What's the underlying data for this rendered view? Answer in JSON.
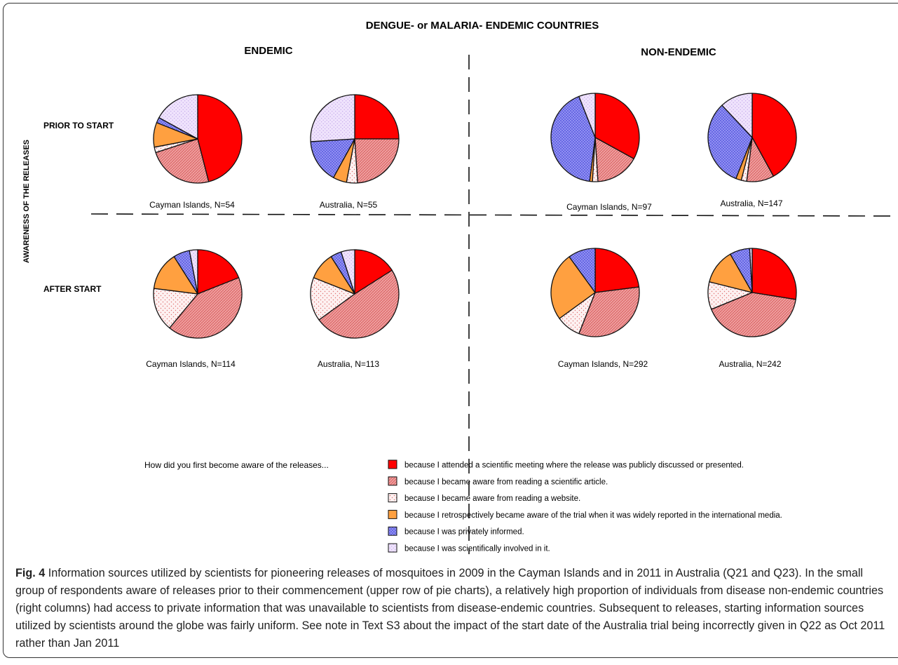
{
  "figure": {
    "title": "DENGUE- or MALARIA- ENDEMIC COUNTRIES",
    "column_headers": [
      "ENDEMIC",
      "NON-ENDEMIC"
    ],
    "row_headers": [
      "PRIOR TO START",
      "AFTER START"
    ],
    "side_label": "AWARENESS OF THE RELEASES",
    "legend_question": "How did you first become aware of the releases...",
    "legend": [
      {
        "label": "because I attended a scientific meeting where the release was publicly discussed or presented.",
        "color": "#ff0000",
        "pattern": "solid"
      },
      {
        "label": "because I became aware from reading a scientific article.",
        "color": "#e88080",
        "pattern": "hatch"
      },
      {
        "label": "because I became aware from reading a website.",
        "color": "#fde8e8",
        "pattern": "dots"
      },
      {
        "label": "because I retrospectively became aware of the trial when it was widely reported in the international media.",
        "color": "#ffa040",
        "pattern": "solid"
      },
      {
        "label": "because I was privately informed.",
        "color": "#8080f0",
        "pattern": "grid"
      },
      {
        "label": "because I was scientifically involved in it.",
        "color": "#e8d6fa",
        "pattern": "dots"
      }
    ]
  },
  "chart_data": [
    {
      "type": "pie",
      "label": "Cayman Islands, N=54",
      "group": "ENDEMIC",
      "timing": "PRIOR TO START",
      "values": [
        46,
        24,
        2,
        9,
        2,
        17
      ]
    },
    {
      "type": "pie",
      "label": "Australia, N=55",
      "group": "ENDEMIC",
      "timing": "PRIOR TO START",
      "values": [
        25,
        24,
        4,
        5,
        16,
        26
      ]
    },
    {
      "type": "pie",
      "label": "Cayman Islands, N=97",
      "group": "NON-ENDEMIC",
      "timing": "PRIOR TO START",
      "values": [
        33,
        16,
        2,
        1,
        42,
        6
      ]
    },
    {
      "type": "pie",
      "label": "Australia, N=147",
      "group": "NON-ENDEMIC",
      "timing": "PRIOR TO START",
      "values": [
        42,
        10,
        2,
        2,
        32,
        12
      ]
    },
    {
      "type": "pie",
      "label": "Cayman Islands, N=114",
      "group": "ENDEMIC",
      "timing": "AFTER START",
      "values": [
        19,
        42,
        16,
        14,
        6,
        3
      ]
    },
    {
      "type": "pie",
      "label": "Australia, N=113",
      "group": "ENDEMIC",
      "timing": "AFTER START",
      "values": [
        16,
        49,
        16,
        10,
        4,
        5
      ]
    },
    {
      "type": "pie",
      "label": "Cayman Islands, N=292",
      "group": "NON-ENDEMIC",
      "timing": "AFTER START",
      "values": [
        23,
        33,
        9,
        25,
        10,
        0
      ]
    },
    {
      "type": "pie",
      "label": "Australia, N=242",
      "group": "NON-ENDEMIC",
      "timing": "AFTER START",
      "values": [
        30,
        45,
        11,
        14,
        8,
        1
      ]
    }
  ],
  "caption": {
    "label": "Fig. 4",
    "text": "Information sources utilized by scientists for pioneering releases of mosquitoes in 2009 in the Cayman Islands and in 2011 in Australia (Q21 and Q23). In the small group of respondents aware of releases prior to their commencement (upper row of pie charts), a relatively high proportion of individuals from disease non-endemic countries (right columns) had access to private information that was unavailable to scientists from disease-endemic countries. Subsequent to releases, starting information sources utilized by scientists around the globe was fairly uniform. See note in Text S3 about the impact of the start date of the Australia trial being incorrectly given in Q22 as Oct 2011 rather than Jan 2011"
  }
}
